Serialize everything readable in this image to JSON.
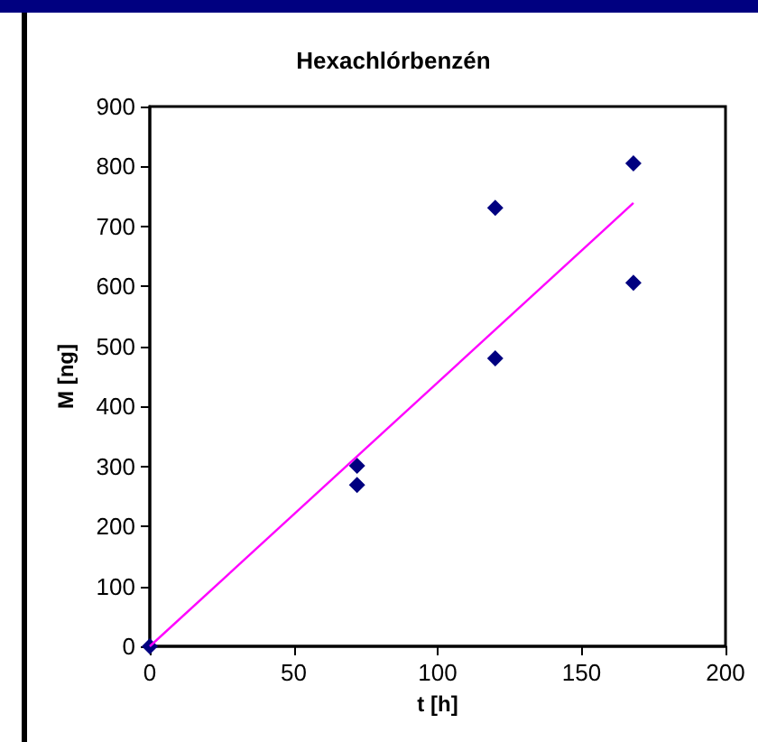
{
  "chart_data": {
    "type": "scatter",
    "title": "Hexachlórbenzén",
    "xlabel": "t [h]",
    "ylabel": "M [ng]",
    "x": [
      0,
      72,
      72,
      120,
      120,
      168,
      168
    ],
    "series": [
      {
        "color": "#000080",
        "marker": "diamond",
        "values": [
          0,
          301,
          269,
          731,
          480,
          805,
          606
        ]
      },
      {
        "type": "line",
        "color": "#ff00ff",
        "marker": "none",
        "x": [
          0,
          168
        ],
        "values": [
          0,
          739
        ]
      }
    ],
    "xlim": [
      0,
      200
    ],
    "xticks": [
      0,
      50,
      100,
      150,
      200
    ],
    "ylim": [
      0,
      900
    ],
    "yticks": [
      0,
      100,
      200,
      300,
      400,
      500,
      600,
      700,
      800,
      900
    ],
    "grid": false
  }
}
